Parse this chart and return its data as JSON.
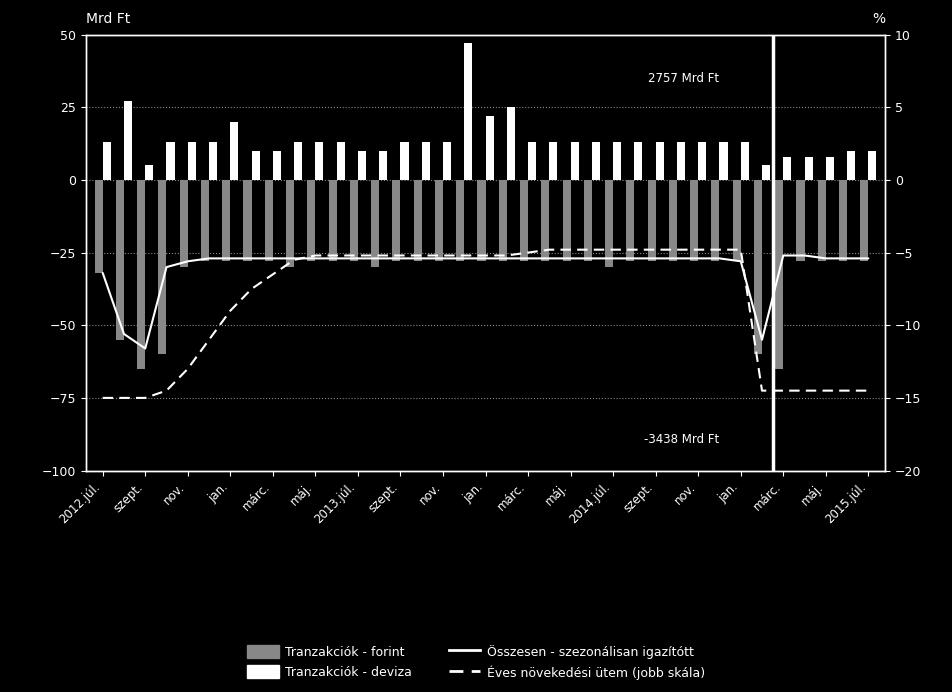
{
  "background_color": "#000000",
  "text_color": "#ffffff",
  "grid_color": "#888888",
  "bar_color_forint": "#888888",
  "bar_color_deviza": "#ffffff",
  "line_color_total": "#ffffff",
  "line_color_growth": "#ffffff",
  "ylabel_left": "Mrd Ft",
  "ylabel_right": "%",
  "ylim_left": [
    -100,
    50
  ],
  "ylim_right": [
    -20,
    10
  ],
  "yticks_left": [
    -100,
    -75,
    -50,
    -25,
    0,
    25,
    50
  ],
  "yticks_right": [
    -20,
    -15,
    -10,
    -5,
    0,
    5,
    10
  ],
  "annotation_top": "2757 Mrd Ft",
  "annotation_bottom": "-3438 Mrd Ft",
  "legend_labels": [
    "Tranzakciók - forint",
    "Tranzakciók - deviza",
    "Összesen - szezonálisan igazítótt",
    "Éves növekedési ütem (jobb skála)"
  ],
  "x_tick_positions": [
    0,
    2,
    4,
    6,
    8,
    10,
    12,
    14,
    16,
    18,
    20,
    22,
    24,
    26,
    28,
    30,
    32,
    34,
    36
  ],
  "x_tick_labels": [
    "2012.júl.",
    "szept.",
    "nov.",
    "jan.",
    "márc.",
    "máj.",
    "2013.júl.",
    "szept.",
    "nov.",
    "jan.",
    "márc.",
    "máj.",
    "2014.júl.",
    "szept.",
    "nov.",
    "jan.",
    "márc.",
    "máj.",
    "2015.júl."
  ],
  "forint_vals": [
    -32,
    -55,
    -65,
    -60,
    -30,
    -28,
    -28,
    -28,
    -28,
    -30,
    -28,
    -28,
    -28,
    -30,
    -28,
    -28,
    -28,
    -28,
    -28,
    -28,
    -28,
    -28,
    -28,
    -28,
    -30,
    -28,
    -28,
    -28,
    -28,
    -28,
    -28,
    -60,
    -65,
    -28,
    -28,
    -28,
    -28
  ],
  "deviza_vals": [
    13,
    27,
    5,
    13,
    13,
    13,
    20,
    10,
    10,
    13,
    13,
    13,
    10,
    10,
    13,
    13,
    13,
    47,
    22,
    25,
    13,
    13,
    13,
    13,
    13,
    13,
    13,
    13,
    13,
    13,
    13,
    5,
    8,
    8,
    8,
    10,
    10
  ],
  "total_line": [
    -32,
    -53,
    -58,
    -30,
    -28,
    -27,
    -27,
    -27,
    -27,
    -27,
    -27,
    -27,
    -27,
    -27,
    -27,
    -27,
    -27,
    -27,
    -27,
    -27,
    -27,
    -27,
    -27,
    -27,
    -27,
    -27,
    -27,
    -27,
    -27,
    -27,
    -28,
    -55,
    -26,
    -26,
    -27,
    -27,
    -27
  ],
  "growth_line": [
    -15,
    -15,
    -15,
    -14.5,
    -13,
    -11,
    -9,
    -7.5,
    -6.5,
    -5.5,
    -5.2,
    -5.2,
    -5.2,
    -5.2,
    -5.2,
    -5.2,
    -5.2,
    -5.2,
    -5.2,
    -5.2,
    -5.0,
    -4.8,
    -4.8,
    -4.8,
    -4.8,
    -4.8,
    -4.8,
    -4.8,
    -4.8,
    -4.8,
    -4.8,
    -14.5,
    -14.5,
    -14.5,
    -14.5,
    -14.5,
    -14.5
  ],
  "vline_x": 31.5,
  "figsize": [
    9.52,
    6.92
  ],
  "dpi": 100
}
